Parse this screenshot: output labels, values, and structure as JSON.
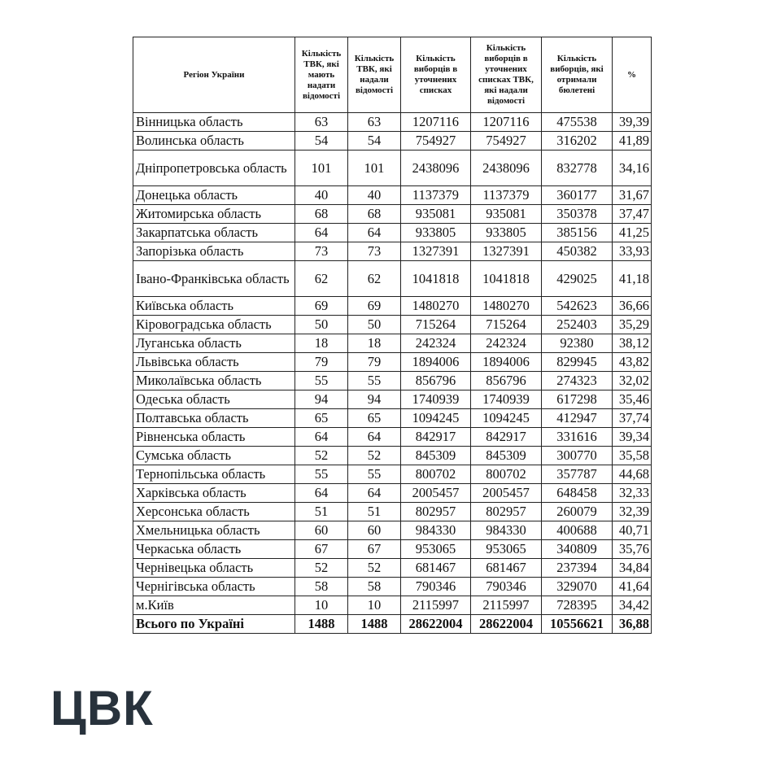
{
  "headers": [
    "Регіон України",
    "Кількість ТВК, які мають надати відомості",
    "Кількість ТВК, які надали відомості",
    "Кількість виборців в уточнених списках",
    "Кількість виборців в уточнених списках ТВК, які надали відомості",
    "Кількість виборців, які отримали бюлетені",
    "%"
  ],
  "rows": [
    [
      "Вінницька область",
      "63",
      "63",
      "1207116",
      "1207116",
      "475538",
      "39,39"
    ],
    [
      "Волинська область",
      "54",
      "54",
      "754927",
      "754927",
      "316202",
      "41,89"
    ],
    [
      "Дніпропетровська область",
      "101",
      "101",
      "2438096",
      "2438096",
      "832778",
      "34,16"
    ],
    [
      "Донецька область",
      "40",
      "40",
      "1137379",
      "1137379",
      "360177",
      "31,67"
    ],
    [
      "Житомирська область",
      "68",
      "68",
      "935081",
      "935081",
      "350378",
      "37,47"
    ],
    [
      "Закарпатська область",
      "64",
      "64",
      "933805",
      "933805",
      "385156",
      "41,25"
    ],
    [
      "Запорізька область",
      "73",
      "73",
      "1327391",
      "1327391",
      "450382",
      "33,93"
    ],
    [
      "Івано-Франківська область",
      "62",
      "62",
      "1041818",
      "1041818",
      "429025",
      "41,18"
    ],
    [
      "Київська область",
      "69",
      "69",
      "1480270",
      "1480270",
      "542623",
      "36,66"
    ],
    [
      "Кіровоградська область",
      "50",
      "50",
      "715264",
      "715264",
      "252403",
      "35,29"
    ],
    [
      "Луганська область",
      "18",
      "18",
      "242324",
      "242324",
      "92380",
      "38,12"
    ],
    [
      "Львівська область",
      "79",
      "79",
      "1894006",
      "1894006",
      "829945",
      "43,82"
    ],
    [
      "Миколаївська область",
      "55",
      "55",
      "856796",
      "856796",
      "274323",
      "32,02"
    ],
    [
      "Одеська область",
      "94",
      "94",
      "1740939",
      "1740939",
      "617298",
      "35,46"
    ],
    [
      "Полтавська область",
      "65",
      "65",
      "1094245",
      "1094245",
      "412947",
      "37,74"
    ],
    [
      "Рівненська область",
      "64",
      "64",
      "842917",
      "842917",
      "331616",
      "39,34"
    ],
    [
      "Сумська область",
      "52",
      "52",
      "845309",
      "845309",
      "300770",
      "35,58"
    ],
    [
      "Тернопільська область",
      "55",
      "55",
      "800702",
      "800702",
      "357787",
      "44,68"
    ],
    [
      "Харківська область",
      "64",
      "64",
      "2005457",
      "2005457",
      "648458",
      "32,33"
    ],
    [
      "Херсонська область",
      "51",
      "51",
      "802957",
      "802957",
      "260079",
      "32,39"
    ],
    [
      "Хмельницька область",
      "60",
      "60",
      "984330",
      "984330",
      "400688",
      "40,71"
    ],
    [
      "Черкаська область",
      "67",
      "67",
      "953065",
      "953065",
      "340809",
      "35,76"
    ],
    [
      "Чернівецька область",
      "52",
      "52",
      "681467",
      "681467",
      "237394",
      "34,84"
    ],
    [
      "Чернігівська область",
      "58",
      "58",
      "790346",
      "790346",
      "329070",
      "41,64"
    ],
    [
      "м.Київ",
      "10",
      "10",
      "2115997",
      "2115997",
      "728395",
      "34,42"
    ]
  ],
  "total": [
    "Всього по Україні",
    "1488",
    "1488",
    "28622004",
    "28622004",
    "10556621",
    "36,88"
  ],
  "logo": {
    "text": "ЦВК",
    "color": "#28323c"
  }
}
